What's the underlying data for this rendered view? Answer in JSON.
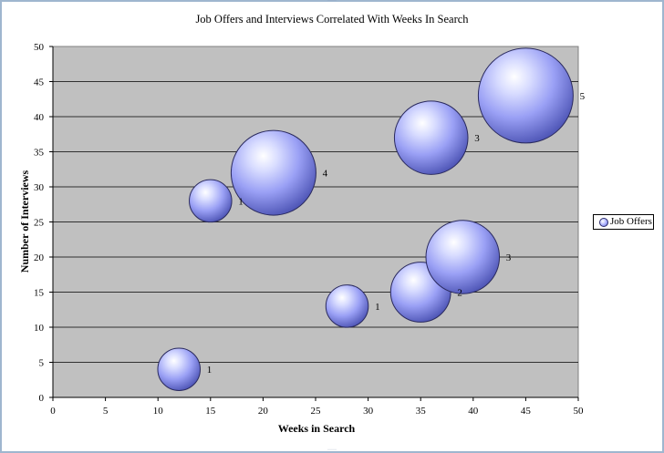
{
  "chart_data": {
    "type": "bubble",
    "title": "Job Offers and Interviews Correlated With Weeks In Search",
    "xlabel": "Weeks in Search",
    "ylabel": "Number of Interviews",
    "xlim": [
      0,
      50
    ],
    "ylim": [
      0,
      50
    ],
    "xticks": [
      0,
      5,
      10,
      15,
      20,
      25,
      30,
      35,
      40,
      45,
      50
    ],
    "yticks": [
      0,
      5,
      10,
      15,
      20,
      25,
      30,
      35,
      40,
      45,
      50
    ],
    "grid": "horizontal",
    "legend_position": "right",
    "series": [
      {
        "name": "Job Offers",
        "color": "#9aa0f5",
        "points": [
          {
            "x": 12,
            "y": 4,
            "size": 1
          },
          {
            "x": 15,
            "y": 28,
            "size": 1
          },
          {
            "x": 21,
            "y": 32,
            "size": 4
          },
          {
            "x": 28,
            "y": 13,
            "size": 1
          },
          {
            "x": 35,
            "y": 15,
            "size": 2
          },
          {
            "x": 36,
            "y": 37,
            "size": 3
          },
          {
            "x": 39,
            "y": 20,
            "size": 3
          },
          {
            "x": 45,
            "y": 43,
            "size": 5
          }
        ]
      }
    ]
  },
  "legend": {
    "label": "Job Offers"
  }
}
